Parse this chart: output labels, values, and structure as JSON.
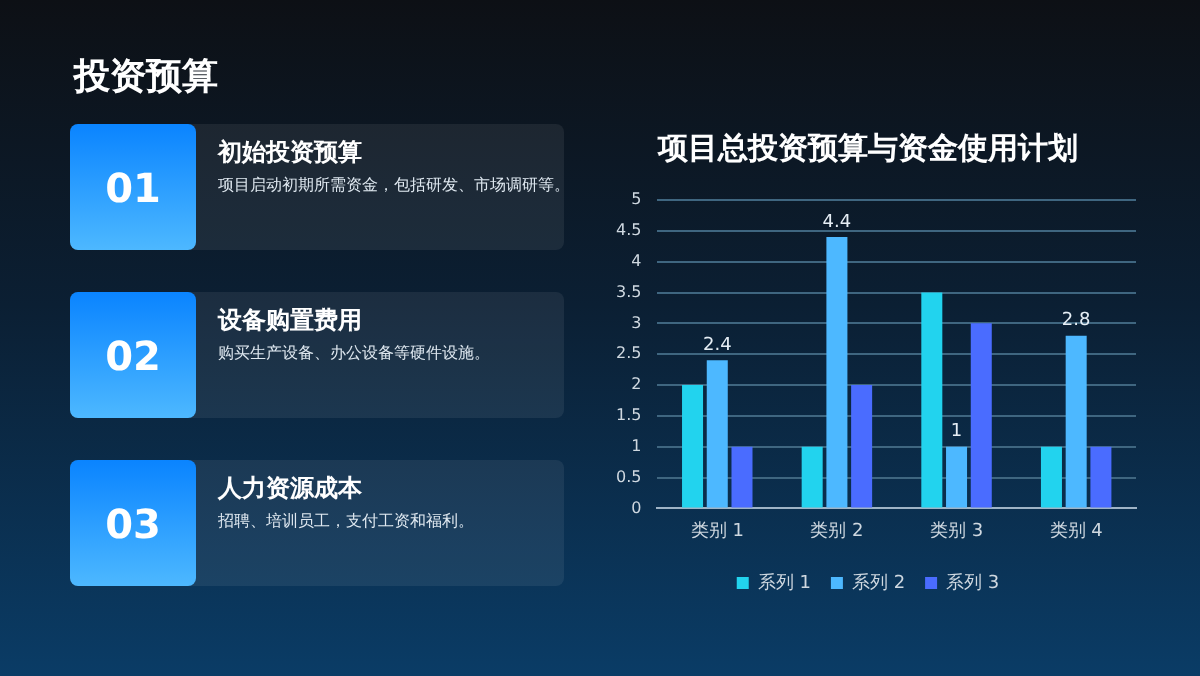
{
  "chart_data": [
    {
      "type": "other",
      "title": "投资预算",
      "annotations": [
        "01",
        "初始投资预算",
        "项目启动初期所需资金，包括研发、市场调研等。",
        "02",
        "设备购置费用",
        "购买生产设备、办公设备等硬件设施。",
        "03",
        "人力资源成本",
        "招聘、培训员工，支付工资和福利。"
      ]
    },
    {
      "type": "bar",
      "title": "项目总投资预算与资金使用计划",
      "categories": [
        "类别 1",
        "类别 2",
        "类别 3",
        "类别 4"
      ],
      "series": [
        {
          "name": "系列 1",
          "color": "#22d3ee",
          "values": [
            2,
            1,
            3.5,
            1
          ]
        },
        {
          "name": "系列 2",
          "color": "#4db8ff",
          "values": [
            2.4,
            4.4,
            1,
            2.8
          ],
          "value_labels": [
            "2.4",
            "4.4",
            "1",
            "2.8"
          ]
        },
        {
          "name": "系列 3",
          "color": "#4a6cff",
          "values": [
            1,
            2,
            3,
            1
          ]
        }
      ],
      "ylim": [
        0,
        5
      ],
      "yticks": [
        0,
        0.5,
        1,
        1.5,
        2,
        2.5,
        3,
        3.5,
        4,
        4.5,
        5
      ],
      "grid": "y",
      "legend": "bottom"
    }
  ]
}
